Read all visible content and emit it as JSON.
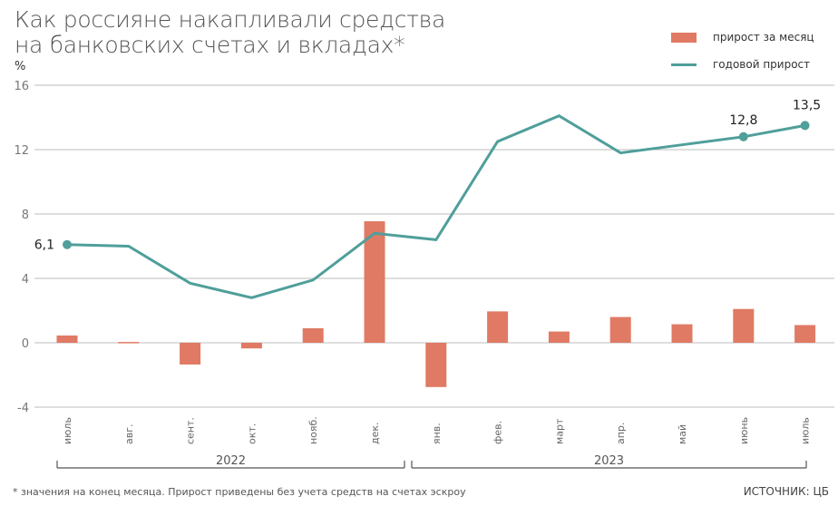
{
  "header": {
    "title_line1": "Как россияне накапливали средства",
    "title_line2": "на банковских счетах и вкладах*",
    "unit": "%"
  },
  "legend": {
    "monthly": "прирост за месяц",
    "annual": "годовой прирост"
  },
  "colors": {
    "bar": "#e07a64",
    "line": "#4f9f9a",
    "grid": "#bdbdbd"
  },
  "footer": {
    "note": "* значения на конец месяца. Прирост приведены без учета средств на счетах эскроу",
    "source": "ИСТОЧНИК: ЦБ"
  },
  "chart_data": {
    "type": "bar+line",
    "title": "Как россияне накапливали средства на банковских счетах и вкладах*",
    "ylabel": "%",
    "ylim": [
      -4,
      16
    ],
    "yticks": [
      -4,
      0,
      4,
      8,
      12,
      16
    ],
    "grid": true,
    "legend_position": "top-right",
    "categories": [
      "июль",
      "авг.",
      "сент.",
      "окт.",
      "нояб.",
      "дек.",
      "янв.",
      "фев.",
      "март",
      "апр.",
      "май",
      "июнь",
      "июль"
    ],
    "year_groups": [
      {
        "label": "2022",
        "from": 0,
        "to": 5
      },
      {
        "label": "2023",
        "from": 6,
        "to": 12
      }
    ],
    "series": [
      {
        "name": "прирост за месяц",
        "type": "bar",
        "values": [
          0.45,
          0.05,
          -1.35,
          -0.35,
          0.9,
          7.55,
          -2.75,
          1.95,
          0.7,
          1.6,
          1.15,
          2.1,
          1.1
        ]
      },
      {
        "name": "годовой прирост",
        "type": "line",
        "values": [
          6.1,
          6.0,
          3.7,
          2.8,
          3.9,
          6.8,
          6.4,
          12.5,
          14.1,
          11.8,
          12.3,
          12.8,
          13.5
        ]
      }
    ],
    "annotations": [
      {
        "index": 0,
        "series": "годовой прирост",
        "label": "6,1"
      },
      {
        "index": 11,
        "series": "годовой прирост",
        "label": "12,8"
      },
      {
        "index": 12,
        "series": "годовой прирост",
        "label": "13,5"
      }
    ]
  }
}
